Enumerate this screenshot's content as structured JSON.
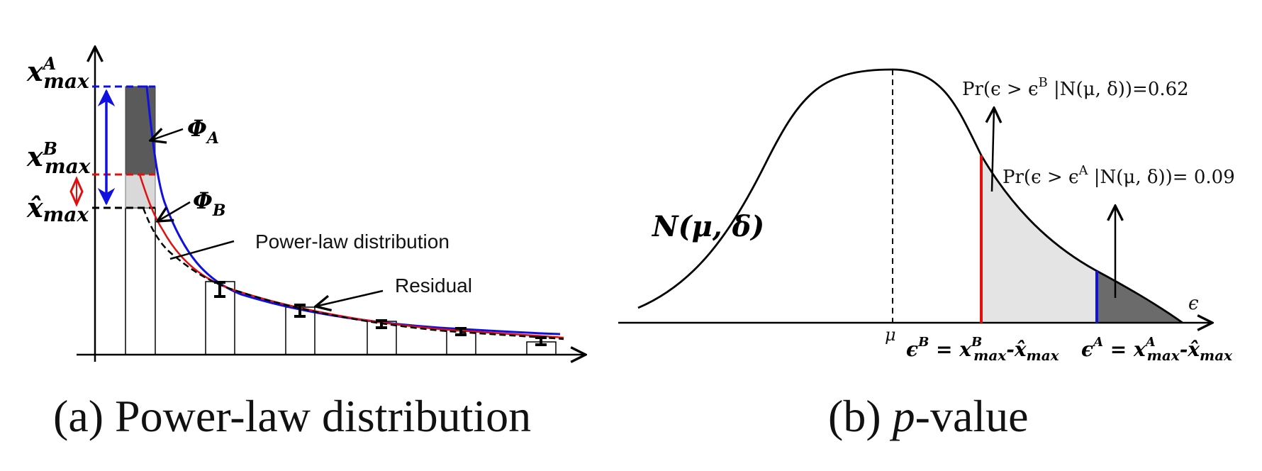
{
  "panel_a": {
    "label_xmax_a": "x",
    "label_xmax_a_sup": "A",
    "label_xmax_a_sub": "max",
    "label_xmax_b": "x",
    "label_xmax_b_sup": "B",
    "label_xmax_b_sub": "max",
    "label_xmax_hat": "x̂",
    "label_xmax_hat_sub": "max",
    "phi_a": "Φ",
    "phi_a_sub": "A",
    "phi_b": "Φ",
    "phi_b_sub": "B",
    "powerlaw_label": "Power-law distribution",
    "residual_label": "Residual",
    "caption": "(a) Power-law distribution"
  },
  "panel_b": {
    "normal_label": "N(μ, δ)",
    "mu_label": "μ",
    "epsilon_axis_label": "ϵ",
    "pr_b": "Pr(ϵ > ϵ",
    "pr_b_sup": "B",
    "pr_b_rest": " |N(μ, δ))=0.62",
    "pr_a": "Pr(ϵ > ϵ",
    "pr_a_sup": "A",
    "pr_a_rest": " |N(μ, δ))= 0.09",
    "eps_b_eq": "ϵ",
    "eps_b_sup": "B",
    "eps_b_mid": " = x",
    "eps_b_mid_sup": "B",
    "eps_b_mid_sub": "max",
    "eps_b_tail": "-x̂",
    "eps_b_tail_sub": "max",
    "eps_a_eq": "ϵ",
    "eps_a_sup": "A",
    "eps_a_mid": " = x",
    "eps_a_mid_sup": "A",
    "eps_a_mid_sub": "max",
    "eps_a_tail": "-x̂",
    "eps_a_tail_sub": "max",
    "caption_prefix": "(b) ",
    "caption_italic": "p",
    "caption_suffix": "-value"
  },
  "colors": {
    "blue": "#1010e0",
    "red": "#e01010",
    "dark_gray": "#5a5a5a",
    "light_gray": "#e4e4e4",
    "black": "#000000"
  }
}
